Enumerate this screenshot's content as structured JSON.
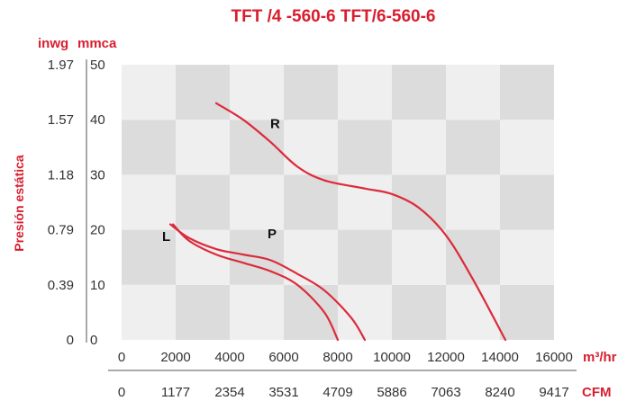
{
  "chart_data": {
    "type": "line",
    "title": "TFT /4 -560-6   TFT/6-560-6",
    "ylabel": "Presión estática",
    "y_unit_left": "inwg",
    "y_unit_right": "mmca",
    "x_unit_primary": "m³/hr",
    "x_unit_secondary": "CFM",
    "xlim": [
      0,
      16000
    ],
    "ylim": [
      0,
      50
    ],
    "x_ticks": [
      "0",
      "2000",
      "4000",
      "6000",
      "8000",
      "10000",
      "12000",
      "14000",
      "16000"
    ],
    "x_ticks_cfm": [
      "0",
      "1177",
      "2354",
      "3531",
      "4709",
      "5886",
      "7063",
      "8240",
      "9417"
    ],
    "y_ticks_mmca": [
      "0",
      "10",
      "20",
      "30",
      "40",
      "50"
    ],
    "y_ticks_inwg": [
      "0",
      "0.39",
      "0.79",
      "1.18",
      "1.57",
      "1.97"
    ],
    "grid": true,
    "colors": {
      "curve": "#dc2b3a",
      "accent": "#d81e2e",
      "grid_dark": "#dcdcdc",
      "grid_light": "#efefef"
    },
    "series": [
      {
        "name": "R",
        "x": [
          3500,
          4500,
          5500,
          6500,
          7500,
          9000,
          10000,
          11000,
          12000,
          13000,
          14200
        ],
        "y": [
          43,
          40,
          36,
          31.5,
          29,
          27.5,
          26.5,
          24,
          19,
          11,
          0
        ]
      },
      {
        "name": "P",
        "x": [
          1800,
          2500,
          3500,
          4500,
          5500,
          6500,
          7500,
          8500,
          9000
        ],
        "y": [
          21,
          18.5,
          16.5,
          15.5,
          14.5,
          12,
          9,
          4,
          0
        ]
      },
      {
        "name": "L",
        "x": [
          1900,
          2500,
          3500,
          4500,
          5500,
          6500,
          7500,
          8000
        ],
        "y": [
          21,
          18,
          15.5,
          14,
          12.5,
          10,
          5,
          0
        ]
      }
    ],
    "annotations": [
      "R",
      "P",
      "L"
    ]
  }
}
